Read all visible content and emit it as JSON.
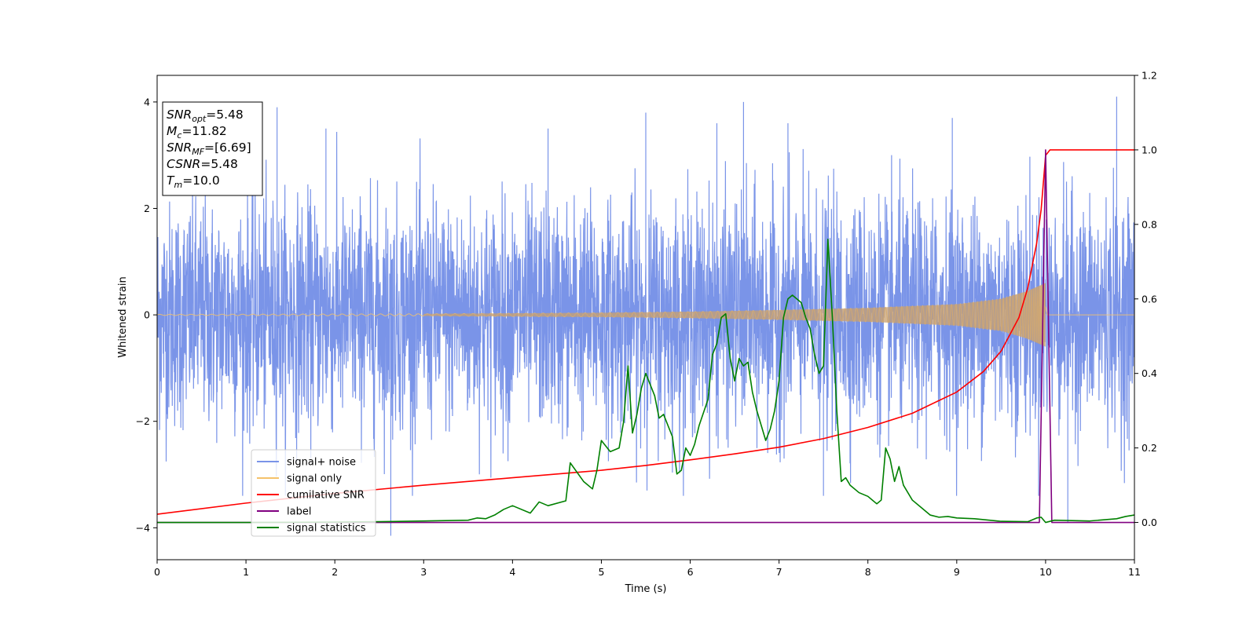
{
  "chart_data": {
    "type": "line",
    "xlabel": "Time (s)",
    "ylabel_left": "Whitened strain",
    "ylabel_right": "",
    "xlim": [
      0,
      11
    ],
    "ylim_left": [
      -4.6,
      4.5
    ],
    "ylim_right": [
      -0.1,
      1.2
    ],
    "x_ticks": [
      0,
      1,
      2,
      3,
      4,
      5,
      6,
      7,
      8,
      9,
      10,
      11
    ],
    "y_ticks_left": [
      -4,
      -2,
      0,
      2,
      4
    ],
    "y_ticks_right": [
      0.0,
      0.2,
      0.4,
      0.6,
      0.8,
      1.0,
      1.2
    ],
    "grid": false,
    "legend_position": "lower-left",
    "annotation": {
      "lines": [
        {
          "main": "SNR",
          "sub": "opt",
          "rest": "=5.48"
        },
        {
          "main": "M",
          "sub": "c",
          "rest": "=11.82"
        },
        {
          "main": "SNR",
          "sub": "MF",
          "rest": "=[6.69]"
        },
        {
          "main": "CSNR",
          "sub": "",
          "rest": "=5.48"
        },
        {
          "main": "T",
          "sub": "m",
          "rest": "=10.0"
        }
      ]
    },
    "series": [
      {
        "name": "signal+ noise",
        "axis": "left",
        "color": "#7a94e8",
        "description_points": "noisy whitened strain, amplitude roughly within [-3.3, 3.6] with occasional peaks near 4.0",
        "amplitude_typical": 2.2,
        "amplitude_peak": 4.1
      },
      {
        "name": "signal only",
        "axis": "left",
        "color": "#f5c26b",
        "envelope": [
          [
            0,
            0.01
          ],
          [
            3,
            0.02
          ],
          [
            5,
            0.04
          ],
          [
            6,
            0.06
          ],
          [
            7,
            0.09
          ],
          [
            8,
            0.13
          ],
          [
            9,
            0.2
          ],
          [
            9.5,
            0.3
          ],
          [
            9.8,
            0.45
          ],
          [
            10,
            0.6
          ],
          [
            10.02,
            0
          ]
        ]
      },
      {
        "name": "cumilative SNR",
        "axis": "right",
        "color": "#ff0000",
        "x": [
          0,
          1,
          2,
          3,
          4,
          5,
          5.5,
          6,
          6.5,
          7,
          7.5,
          8,
          8.5,
          9,
          9.3,
          9.5,
          9.7,
          9.8,
          9.9,
          9.95,
          10,
          10.05,
          11
        ],
        "y": [
          0.022,
          0.052,
          0.078,
          0.1,
          0.12,
          0.14,
          0.153,
          0.168,
          0.184,
          0.202,
          0.225,
          0.255,
          0.293,
          0.35,
          0.405,
          0.46,
          0.55,
          0.63,
          0.75,
          0.84,
          0.985,
          1.0,
          1.0
        ]
      },
      {
        "name": "label",
        "axis": "right",
        "color": "#800080",
        "x": [
          0,
          9.93,
          10.0,
          10.07,
          11
        ],
        "y": [
          0.0,
          0.0,
          1.0,
          0.0,
          0.0
        ]
      },
      {
        "name": "signal statistics",
        "axis": "right",
        "color": "#008000",
        "x": [
          0,
          1,
          2,
          2.5,
          3,
          3.5,
          3.6,
          3.7,
          3.8,
          3.9,
          4.0,
          4.2,
          4.3,
          4.4,
          4.6,
          4.65,
          4.8,
          4.9,
          4.95,
          5.0,
          5.1,
          5.2,
          5.25,
          5.3,
          5.35,
          5.4,
          5.45,
          5.5,
          5.6,
          5.65,
          5.7,
          5.75,
          5.8,
          5.85,
          5.9,
          5.95,
          6.0,
          6.05,
          6.1,
          6.2,
          6.25,
          6.3,
          6.35,
          6.4,
          6.45,
          6.5,
          6.55,
          6.6,
          6.65,
          6.7,
          6.75,
          6.8,
          6.85,
          6.9,
          6.95,
          7.0,
          7.05,
          7.1,
          7.15,
          7.2,
          7.25,
          7.3,
          7.35,
          7.4,
          7.45,
          7.5,
          7.55,
          7.6,
          7.65,
          7.7,
          7.75,
          7.8,
          7.9,
          8.0,
          8.1,
          8.15,
          8.2,
          8.25,
          8.3,
          8.35,
          8.4,
          8.5,
          8.6,
          8.7,
          8.8,
          8.9,
          9.0,
          9.2,
          9.5,
          9.8,
          9.9,
          9.95,
          10.0,
          10.1,
          10.5,
          10.8,
          10.9,
          11.0
        ],
        "y": [
          0.0,
          0.0,
          0.001,
          0.002,
          0.004,
          0.006,
          0.012,
          0.01,
          0.02,
          0.035,
          0.045,
          0.025,
          0.055,
          0.045,
          0.058,
          0.16,
          0.11,
          0.09,
          0.14,
          0.22,
          0.19,
          0.2,
          0.27,
          0.42,
          0.24,
          0.29,
          0.36,
          0.4,
          0.34,
          0.28,
          0.29,
          0.26,
          0.23,
          0.13,
          0.14,
          0.2,
          0.18,
          0.21,
          0.26,
          0.33,
          0.45,
          0.48,
          0.55,
          0.56,
          0.44,
          0.38,
          0.44,
          0.42,
          0.43,
          0.35,
          0.3,
          0.26,
          0.22,
          0.25,
          0.3,
          0.38,
          0.55,
          0.6,
          0.61,
          0.6,
          0.59,
          0.55,
          0.52,
          0.45,
          0.4,
          0.42,
          0.76,
          0.55,
          0.3,
          0.11,
          0.12,
          0.1,
          0.08,
          0.07,
          0.05,
          0.06,
          0.2,
          0.17,
          0.11,
          0.15,
          0.1,
          0.06,
          0.04,
          0.02,
          0.014,
          0.016,
          0.012,
          0.01,
          0.003,
          0.002,
          0.012,
          0.014,
          0.0,
          0.006,
          0.004,
          0.01,
          0.016,
          0.02
        ]
      }
    ]
  }
}
